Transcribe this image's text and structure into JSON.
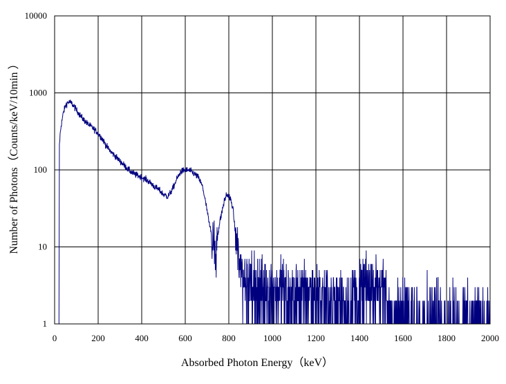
{
  "chart_data": {
    "type": "line",
    "title": "",
    "xlabel": "Absorbed Photon Energy（keV）",
    "ylabel": "Number  of Photons（Counts/keV/10min ）",
    "xlim": [
      0,
      2000
    ],
    "ylim": [
      1,
      10000
    ],
    "yscale": "log",
    "grid": true,
    "legend": "none",
    "x_ticks": [
      "0",
      "200",
      "400",
      "600",
      "800",
      "1000",
      "1200",
      "1400",
      "1600",
      "1800",
      "2000"
    ],
    "y_ticks": [
      "1",
      "10",
      "100",
      "1000",
      "10000"
    ],
    "series": [
      {
        "color": "#00007f",
        "x": [
          20,
          22,
          25,
          30,
          40,
          50,
          60,
          70,
          80,
          90,
          100,
          110,
          120,
          130,
          140,
          150,
          160,
          170,
          180,
          190,
          200,
          220,
          240,
          260,
          280,
          300,
          320,
          340,
          360,
          380,
          400,
          420,
          440,
          460,
          480,
          500,
          520,
          540,
          560,
          580,
          600,
          620,
          640,
          660,
          680,
          700,
          710,
          720,
          730,
          740,
          750,
          760,
          770,
          780,
          790,
          800,
          810,
          820,
          830,
          840,
          850,
          860,
          880,
          900,
          950,
          1000,
          1050,
          1100,
          1150,
          1200,
          1250,
          1300,
          1350,
          1400,
          1420,
          1440,
          1460,
          1480,
          1500,
          1520,
          1540,
          1560,
          1600,
          1700,
          1800,
          1900,
          2000
        ],
        "y": [
          1,
          210,
          280,
          380,
          550,
          680,
          750,
          760,
          720,
          660,
          600,
          550,
          500,
          460,
          430,
          400,
          380,
          360,
          340,
          320,
          300,
          250,
          200,
          170,
          150,
          130,
          115,
          100,
          90,
          85,
          80,
          75,
          68,
          60,
          55,
          48,
          45,
          55,
          75,
          95,
          100,
          98,
          90,
          80,
          60,
          30,
          20,
          15,
          12,
          10,
          15,
          22,
          30,
          40,
          48,
          45,
          40,
          30,
          15,
          9,
          7,
          5,
          4,
          3.5,
          3,
          3,
          3,
          2.5,
          2.5,
          2.5,
          2,
          2,
          2,
          2.5,
          3,
          3.5,
          4,
          3.5,
          3,
          2,
          1.5,
          1.3,
          1.2,
          1.1,
          1.1,
          1.05,
          1
        ]
      }
    ]
  }
}
